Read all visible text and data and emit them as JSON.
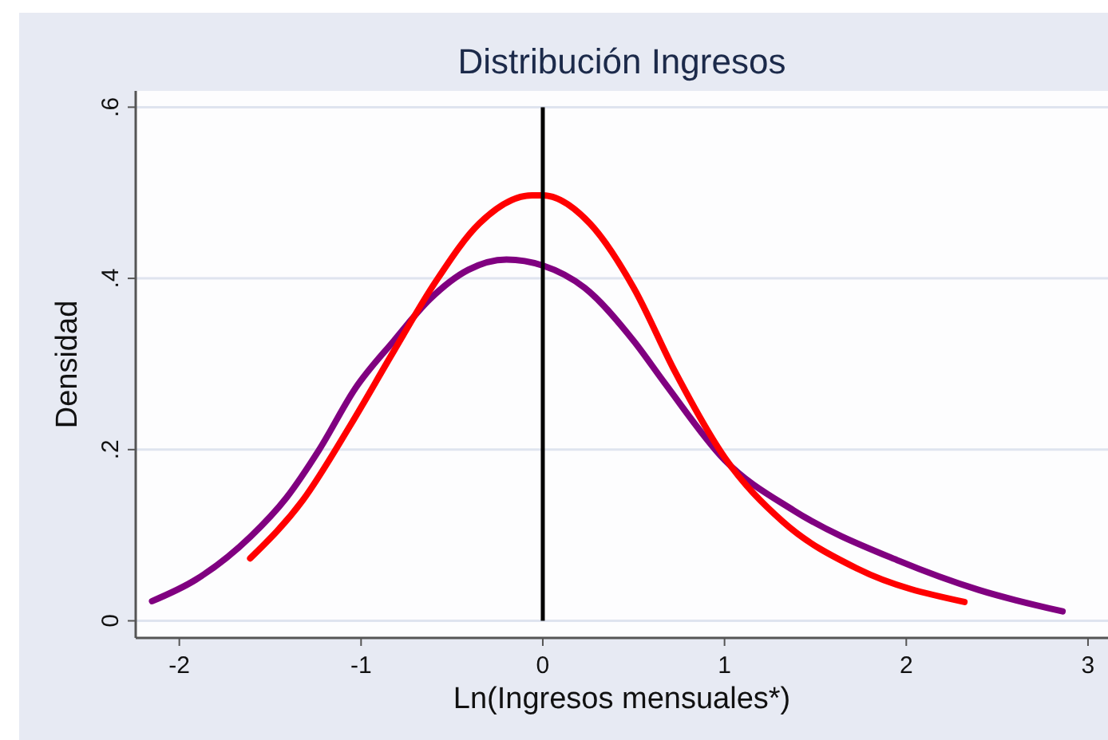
{
  "chart_data": {
    "type": "line",
    "title": "Distribución Ingresos",
    "xlabel": "Ln(Ingresos mensuales*)",
    "ylabel": "Densidad",
    "xlim": [
      -2.24,
      3.11
    ],
    "ylim": [
      -0.02,
      0.619
    ],
    "xticks": [
      -2,
      -1,
      0,
      1,
      2,
      3
    ],
    "yticks": [
      0,
      {
        "value": 0.2,
        "label": ".2"
      },
      {
        "value": 0.4,
        "label": ".4"
      },
      {
        "value": 0.6,
        "label": ".6"
      }
    ],
    "grid": "y",
    "marker": "none",
    "line_style": "solid",
    "ref_lines": [
      {
        "axis": "x",
        "value": 0,
        "color": "#000000"
      }
    ],
    "series": [
      {
        "color": "#800080",
        "x": [
          -2.15,
          -1.91,
          -1.61,
          -1.41,
          -1.23,
          -1.03,
          -0.82,
          -0.62,
          -0.41,
          -0.2,
          0,
          0.23,
          0.5,
          0.67,
          1.0,
          1.38,
          1.96,
          2.4,
          2.86
        ],
        "values": [
          0.023,
          0.048,
          0.098,
          0.144,
          0.2,
          0.272,
          0.327,
          0.376,
          0.41,
          0.422,
          0.415,
          0.389,
          0.327,
          0.278,
          0.188,
          0.129,
          0.07,
          0.036,
          0.011
        ]
      },
      {
        "color": "#ff0000",
        "x": [
          -1.61,
          -1.32,
          -1.06,
          -0.82,
          -0.59,
          -0.35,
          -0.06,
          0,
          0.26,
          0.5,
          0.73,
          1.0,
          1.32,
          1.73,
          2.32
        ],
        "values": [
          0.073,
          0.141,
          0.228,
          0.315,
          0.396,
          0.464,
          0.497,
          0.497,
          0.464,
          0.389,
          0.29,
          0.191,
          0.116,
          0.061,
          0.022
        ]
      }
    ]
  }
}
